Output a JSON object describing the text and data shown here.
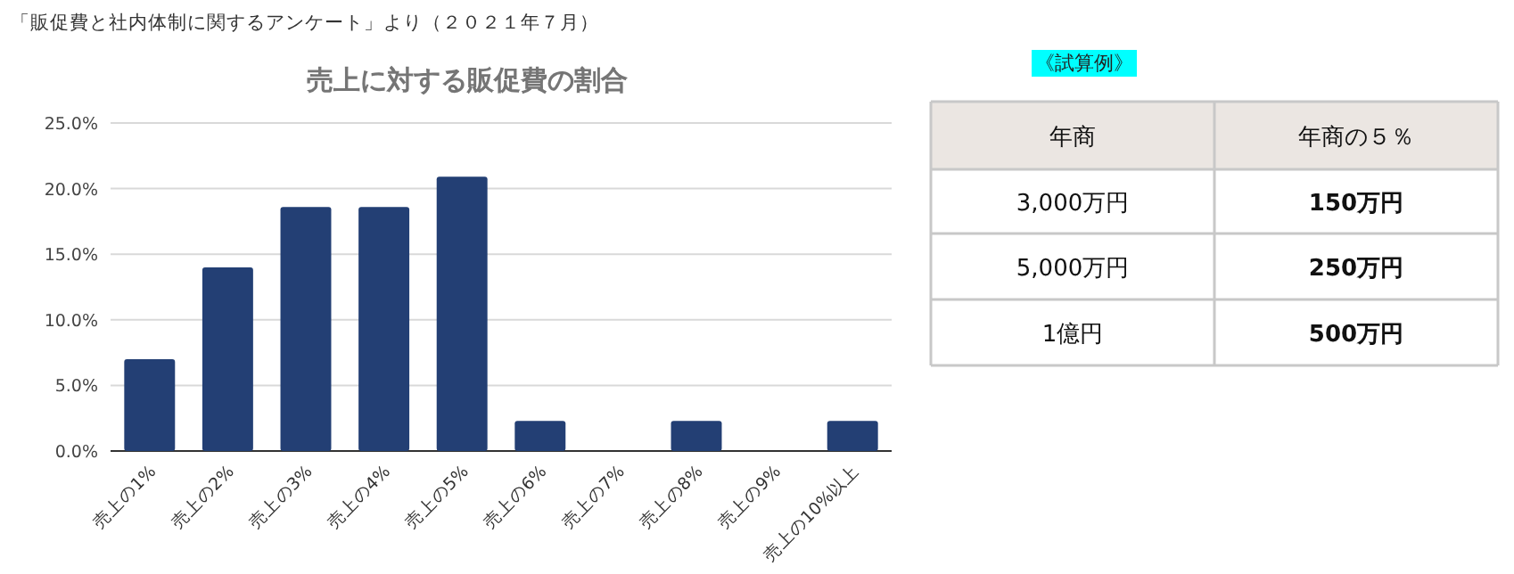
{
  "chart_data": [
    {
      "type": "bar",
      "title": "売上に対する販促費の割合",
      "annotations": [
        "「販促費と社内体制に関するアンケート」より（２０２１年７月）"
      ],
      "categories": [
        "売上の1%",
        "売上の2%",
        "売上の3%",
        "売上の4%",
        "売上の5%",
        "売上の6%",
        "売上の7%",
        "売上の8%",
        "売上の9%",
        "売上の10%以上"
      ],
      "values": [
        7.0,
        14.0,
        18.6,
        18.6,
        20.9,
        2.3,
        0,
        2.3,
        0,
        2.3
      ],
      "color": "#233f74",
      "ylim": [
        0,
        25
      ],
      "yticks": [
        {
          "value": 0,
          "label": "0.0%"
        },
        {
          "value": 5,
          "label": "5.0%"
        },
        {
          "value": 10,
          "label": "10.0%"
        },
        {
          "value": 15,
          "label": "15.0%"
        },
        {
          "value": 20,
          "label": "20.0%"
        },
        {
          "value": 25,
          "label": "25.0%"
        }
      ],
      "grid": "y"
    },
    {
      "type": "other",
      "title": "《試算例》",
      "annotations": [
        "年商",
        "年商の５％",
        "3,000万円",
        "**150万円**",
        "5,000万円",
        "**250万円**",
        "1億円",
        "**500万円**"
      ]
    }
  ]
}
